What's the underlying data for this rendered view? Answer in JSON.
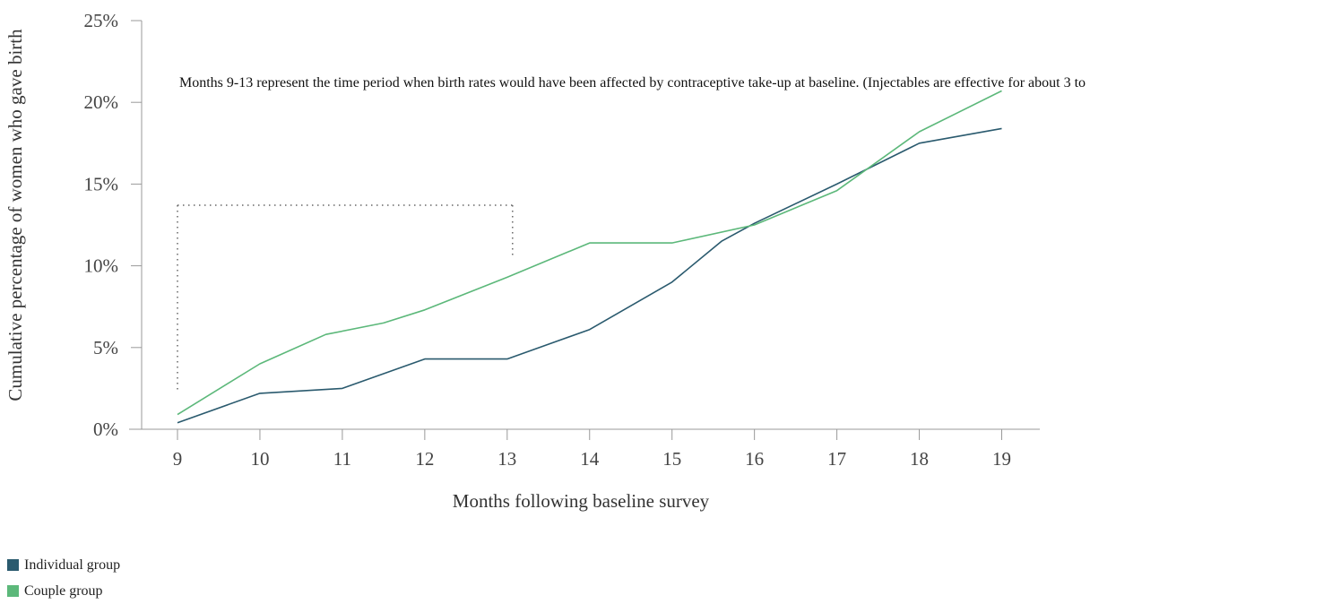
{
  "chart_data": {
    "type": "line",
    "xlabel": "Months following baseline survey",
    "ylabel": "Cumulative percentage of women who gave birth",
    "x_ticks": [
      9,
      10,
      11,
      12,
      13,
      14,
      15,
      16,
      17,
      18,
      19
    ],
    "y_ticks": [
      "0%",
      "5%",
      "10%",
      "15%",
      "20%",
      "25%"
    ],
    "ylim": [
      0,
      25
    ],
    "xlim": [
      8.5,
      19.45
    ],
    "grid": false,
    "legend_position": "bottom-left",
    "annotation": {
      "text": "Months 9-13 represent the time period when birth rates would have been affected by contraceptive take-up at baseline. (Injectables are effective for about 3 to",
      "bracket_x_start": 9,
      "bracket_x_end": 13
    },
    "series": [
      {
        "name": "Individual group",
        "color": "#2a5a6e",
        "points": [
          [
            9,
            0.4
          ],
          [
            10,
            2.2
          ],
          [
            11,
            2.5
          ],
          [
            12,
            4.3
          ],
          [
            13,
            4.3
          ],
          [
            14,
            6.1
          ],
          [
            15,
            9.0
          ],
          [
            15.6,
            11.5
          ],
          [
            16,
            12.6
          ],
          [
            17,
            15.0
          ],
          [
            18,
            17.5
          ],
          [
            19,
            18.4
          ]
        ]
      },
      {
        "name": "Couple group",
        "color": "#5cb87a",
        "points": [
          [
            9,
            0.9
          ],
          [
            10,
            4.0
          ],
          [
            10.8,
            5.8
          ],
          [
            11.5,
            6.5
          ],
          [
            12,
            7.3
          ],
          [
            13,
            9.3
          ],
          [
            14,
            11.4
          ],
          [
            15,
            11.4
          ],
          [
            16,
            12.5
          ],
          [
            17,
            14.6
          ],
          [
            18,
            18.2
          ],
          [
            19,
            20.7
          ]
        ]
      }
    ]
  }
}
